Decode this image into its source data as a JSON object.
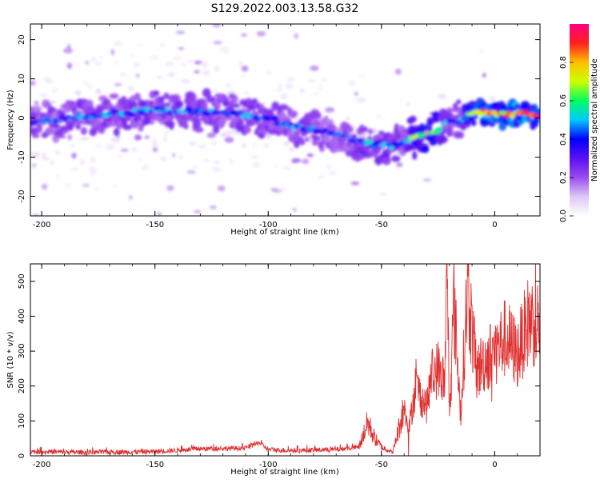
{
  "title": "S129.2022.003.13.58.G32",
  "colors": {
    "line": "#e03030",
    "axis": "#000000"
  },
  "chart_data": [
    {
      "type": "heatmap",
      "xlabel": "Height of straight line (km)",
      "ylabel": "Frequency (Hz)",
      "xlim": [
        -205,
        20
      ],
      "ylim": [
        -25,
        24
      ],
      "x_ticks": [
        -200,
        -150,
        -100,
        -50,
        0
      ],
      "y_ticks": [
        -20,
        -10,
        0,
        10,
        20
      ],
      "colorbar": {
        "label": "Normalized spectral amplitude",
        "range": [
          0,
          1
        ],
        "ticks": [
          0.0,
          0.2,
          0.4,
          0.6,
          0.8
        ],
        "colormap": [
          "#ffffff",
          "#dcc8f5",
          "#9b4cf0",
          "#5b10f0",
          "#0000ff",
          "#00c8ff",
          "#00ff60",
          "#ccff00",
          "#ffc000",
          "#ff2020",
          "#ff0080"
        ]
      },
      "ridge": {
        "description_points_x": [
          -205,
          -180,
          -150,
          -120,
          -105,
          -95,
          -85,
          -75,
          -65,
          -57,
          -50,
          -45,
          -40,
          -35,
          -30,
          -25,
          -20,
          -15,
          -10,
          -5,
          0,
          10,
          20
        ],
        "frequency_y": [
          -1,
          0.5,
          2,
          1.5,
          0.5,
          -1,
          -2.5,
          -3.5,
          -5,
          -6.5,
          -7,
          -7.5,
          -6,
          -5,
          -4,
          -3,
          -1,
          -0.5,
          1.5,
          1.5,
          1,
          1,
          1
        ],
        "peak_amplitude": [
          0.45,
          0.5,
          0.5,
          0.5,
          0.5,
          0.45,
          0.5,
          0.45,
          0.45,
          0.55,
          0.55,
          0.55,
          0.45,
          0.75,
          0.8,
          0.65,
          0.45,
          0.5,
          0.85,
          0.95,
          0.9,
          0.95,
          0.9
        ]
      }
    },
    {
      "type": "line",
      "xlabel": "Height of straight line (km)",
      "ylabel": "SNR (10 * v/v)",
      "xlim": [
        -205,
        20
      ],
      "ylim": [
        0,
        550
      ],
      "x_ticks": [
        -200,
        -150,
        -100,
        -50,
        0
      ],
      "y_ticks": [
        0,
        100,
        200,
        300,
        400,
        500
      ],
      "series": [
        {
          "x": [
            -205,
            -180,
            -150,
            -130,
            -110,
            -104,
            -100,
            -90,
            -70,
            -60,
            -56,
            -53,
            -50,
            -45,
            -40,
            -38,
            -35,
            -30,
            -28,
            -25,
            -22,
            -21,
            -20,
            -18,
            -15,
            -12,
            -8,
            -5,
            0,
            5,
            10,
            15,
            20
          ],
          "values": [
            12,
            10,
            12,
            20,
            22,
            38,
            18,
            15,
            18,
            25,
            95,
            50,
            25,
            10,
            140,
            70,
            200,
            140,
            230,
            250,
            210,
            550,
            120,
            440,
            120,
            480,
            240,
            270,
            300,
            340,
            290,
            390,
            380
          ]
        }
      ]
    }
  ]
}
